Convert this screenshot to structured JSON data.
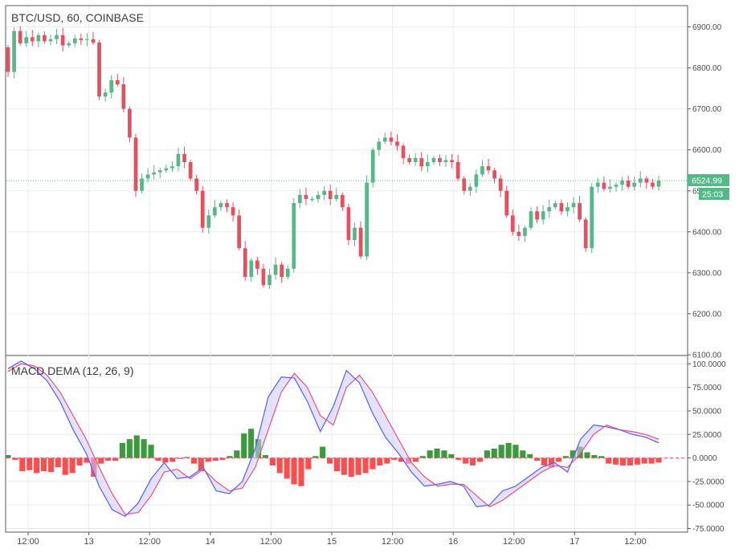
{
  "chart_data": [
    {
      "type": "candlestick",
      "title": "BTC/USD, 60, COINBASE",
      "ylim": [
        6100,
        6950
      ],
      "yticks": [
        "6900.00",
        "6800.00",
        "6700.00",
        "6600.00",
        "6500.00",
        "6400.00",
        "6300.00",
        "6200.00",
        "6100.00"
      ],
      "ytick_values": [
        6900,
        6800,
        6700,
        6600,
        6500,
        6400,
        6300,
        6200,
        6100
      ],
      "xticks": [
        "12:00",
        "13",
        "12:00",
        "14",
        "12:00",
        "15",
        "12:00",
        "16",
        "12:00",
        "17",
        "12:00"
      ],
      "last_price": {
        "label": "6524.99",
        "value": 6524.99,
        "countdown": "25:03"
      },
      "colors": {
        "up": "#53b987",
        "down": "#eb4d5c"
      },
      "closes": [
        6790,
        6890,
        6860,
        6875,
        6865,
        6880,
        6865,
        6870,
        6880,
        6855,
        6860,
        6872,
        6868,
        6870,
        6862,
        6730,
        6740,
        6770,
        6760,
        6700,
        6630,
        6500,
        6530,
        6540,
        6545,
        6550,
        6555,
        6560,
        6590,
        6570,
        6530,
        6500,
        6410,
        6440,
        6460,
        6470,
        6460,
        6440,
        6360,
        6290,
        6330,
        6310,
        6270,
        6295,
        6320,
        6290,
        6310,
        6470,
        6490,
        6480,
        6480,
        6490,
        6500,
        6480,
        6490,
        6460,
        6380,
        6410,
        6340,
        6520,
        6600,
        6620,
        6630,
        6620,
        6610,
        6580,
        6570,
        6580,
        6560,
        6570,
        6580,
        6570,
        6575,
        6570,
        6530,
        6500,
        6510,
        6540,
        6560,
        6550,
        6530,
        6500,
        6440,
        6400,
        6390,
        6410,
        6450,
        6430,
        6450,
        6460,
        6470,
        6450,
        6460,
        6470,
        6430,
        6360,
        6510,
        6520,
        6505,
        6510,
        6515,
        6525,
        6510,
        6520,
        6530,
        6520,
        6510,
        6524.99
      ]
    },
    {
      "type": "line",
      "title": "MACD DEMA (12, 26, 9)",
      "ylim": [
        -78,
        108
      ],
      "yticks": [
        "100.0000",
        "75.0000",
        "50.0000",
        "25.0000",
        "0.0000",
        "-25.0000",
        "-50.0000",
        "-75.0000"
      ],
      "ytick_values": [
        100,
        75,
        50,
        25,
        0,
        -25,
        -50,
        -75
      ],
      "series_colors": {
        "macd": "#5b5bff",
        "signal": "#ff4d6a",
        "fill": "#c8ccff"
      },
      "macd": [
        95,
        103,
        95,
        82,
        60,
        30,
        5,
        -30,
        -55,
        -62,
        -48,
        -22,
        -5,
        -22,
        -20,
        -10,
        -35,
        -38,
        -25,
        10,
        65,
        86,
        85,
        60,
        28,
        55,
        93,
        80,
        48,
        22,
        5,
        -15,
        -30,
        -28,
        -25,
        -30,
        -52,
        -50,
        -35,
        -30,
        -20,
        -10,
        -5,
        -15,
        20,
        35,
        33,
        30,
        25,
        22,
        16
      ],
      "signal": [
        92,
        100,
        98,
        88,
        70,
        45,
        20,
        -10,
        -38,
        -60,
        -58,
        -40,
        -15,
        -12,
        -22,
        -12,
        -25,
        -35,
        -32,
        -10,
        30,
        70,
        90,
        75,
        45,
        35,
        75,
        88,
        70,
        45,
        20,
        -5,
        -20,
        -30,
        -28,
        -28,
        -40,
        -52,
        -45,
        -35,
        -25,
        -15,
        -8,
        -10,
        5,
        25,
        35,
        30,
        28,
        25,
        20
      ],
      "histogram": [
        3,
        -2,
        -14,
        -13,
        -16,
        -14,
        -15,
        -10,
        -18,
        -16,
        -8,
        -5,
        -20,
        -6,
        -3,
        -3,
        16,
        20,
        24,
        20,
        14,
        -3,
        -5,
        -4,
        -1,
        1,
        -6,
        -14,
        -4,
        -3,
        -2,
        2,
        8,
        26,
        31,
        20,
        3,
        -8,
        -16,
        -22,
        -28,
        -30,
        -12,
        2,
        12,
        -6,
        -14,
        -18,
        -20,
        -18,
        -16,
        -12,
        -8,
        -6,
        -2,
        -4,
        -6,
        -4,
        2,
        8,
        10,
        8,
        4,
        -2,
        -6,
        -8,
        -4,
        8,
        10,
        14,
        16,
        14,
        8,
        4,
        -3,
        -8,
        -10,
        -4,
        2,
        8,
        12,
        6,
        3,
        2,
        -6,
        -7,
        -8,
        -8,
        -7,
        -6,
        -6,
        -5
      ]
    }
  ]
}
